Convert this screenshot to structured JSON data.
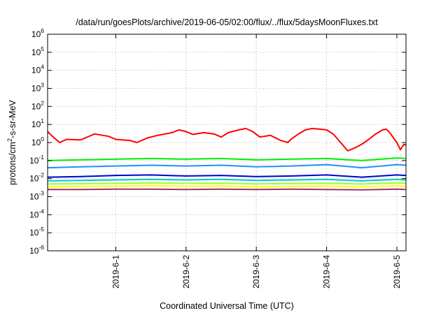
{
  "chart_data": {
    "type": "line",
    "title": "/data/run/goesPlots/archive/2019-06-05/02:00/flux/../flux/5daysMoonFluxes.txt",
    "xlabel": "Coordinated Universal Time (UTC)",
    "ylabel": {
      "base": "protons/cm",
      "sup": "2",
      "rest": "-s-sr-MeV"
    },
    "y_scale": "log",
    "ylim_exponents": [
      -6,
      6
    ],
    "y_ticks": [
      {
        "base": "10",
        "exp": "-6",
        "value": 1e-06
      },
      {
        "base": "10",
        "exp": "-5",
        "value": 1e-05
      },
      {
        "base": "10",
        "exp": "-4",
        "value": 0.0001
      },
      {
        "base": "10",
        "exp": "-3",
        "value": 0.001
      },
      {
        "base": "10",
        "exp": "-2",
        "value": 0.01
      },
      {
        "base": "10",
        "exp": "-1",
        "value": 0.1
      },
      {
        "base": "10",
        "exp": "0",
        "value": 1
      },
      {
        "base": "10",
        "exp": "1",
        "value": 10
      },
      {
        "base": "10",
        "exp": "2",
        "value": 100
      },
      {
        "base": "10",
        "exp": "3",
        "value": 1000
      },
      {
        "base": "10",
        "exp": "4",
        "value": 10000
      },
      {
        "base": "10",
        "exp": "5",
        "value": 100000
      },
      {
        "base": "10",
        "exp": "6",
        "value": 1000000
      }
    ],
    "x_ticks": [
      "2019-6-1",
      "2019-6-2",
      "2019-6-3",
      "2019-6-4",
      "2019-6-5"
    ],
    "x_tick_days": [
      1,
      2,
      3,
      4,
      5
    ],
    "xlim_days": [
      0.03,
      5.13
    ],
    "grid": true,
    "legend": "none",
    "series": [
      {
        "color": "#ff0000",
        "values": [
          [
            0.03,
            4.0
          ],
          [
            0.1,
            2.2
          ],
          [
            0.2,
            1.0
          ],
          [
            0.3,
            1.5
          ],
          [
            0.5,
            1.4
          ],
          [
            0.7,
            3.0
          ],
          [
            0.9,
            2.2
          ],
          [
            1.0,
            1.5
          ],
          [
            1.2,
            1.3
          ],
          [
            1.3,
            1.0
          ],
          [
            1.45,
            1.8
          ],
          [
            1.6,
            2.5
          ],
          [
            1.8,
            3.5
          ],
          [
            1.9,
            5.0
          ],
          [
            2.0,
            4.0
          ],
          [
            2.1,
            2.8
          ],
          [
            2.25,
            3.5
          ],
          [
            2.4,
            3.0
          ],
          [
            2.5,
            2.0
          ],
          [
            2.6,
            3.5
          ],
          [
            2.75,
            5.0
          ],
          [
            2.85,
            6.0
          ],
          [
            2.95,
            4.0
          ],
          [
            3.05,
            2.0
          ],
          [
            3.2,
            2.5
          ],
          [
            3.35,
            1.3
          ],
          [
            3.45,
            1.0
          ],
          [
            3.5,
            1.6
          ],
          [
            3.6,
            3.0
          ],
          [
            3.7,
            5.0
          ],
          [
            3.8,
            6.0
          ],
          [
            3.9,
            5.5
          ],
          [
            4.0,
            5.0
          ],
          [
            4.1,
            2.8
          ],
          [
            4.2,
            1.0
          ],
          [
            4.3,
            0.35
          ],
          [
            4.4,
            0.5
          ],
          [
            4.5,
            0.8
          ],
          [
            4.6,
            1.5
          ],
          [
            4.7,
            3.0
          ],
          [
            4.8,
            5.0
          ],
          [
            4.85,
            5.5
          ],
          [
            4.9,
            3.5
          ],
          [
            5.0,
            1.0
          ],
          [
            5.05,
            0.4
          ],
          [
            5.1,
            0.8
          ],
          [
            5.13,
            0.7
          ]
        ]
      },
      {
        "color": "#00ee00",
        "values": [
          [
            0.03,
            0.1
          ],
          [
            0.5,
            0.11
          ],
          [
            1.0,
            0.12
          ],
          [
            1.5,
            0.13
          ],
          [
            2.0,
            0.12
          ],
          [
            2.5,
            0.13
          ],
          [
            3.0,
            0.11
          ],
          [
            3.5,
            0.12
          ],
          [
            4.0,
            0.13
          ],
          [
            4.5,
            0.1
          ],
          [
            5.0,
            0.14
          ],
          [
            5.13,
            0.13
          ]
        ]
      },
      {
        "color": "#1e90ff",
        "values": [
          [
            0.03,
            0.04
          ],
          [
            0.5,
            0.045
          ],
          [
            1.0,
            0.05
          ],
          [
            1.5,
            0.055
          ],
          [
            2.0,
            0.05
          ],
          [
            2.5,
            0.055
          ],
          [
            3.0,
            0.045
          ],
          [
            3.5,
            0.05
          ],
          [
            4.0,
            0.06
          ],
          [
            4.5,
            0.04
          ],
          [
            5.0,
            0.06
          ],
          [
            5.13,
            0.055
          ]
        ]
      },
      {
        "color": "#0000cc",
        "values": [
          [
            0.03,
            0.012
          ],
          [
            0.5,
            0.013
          ],
          [
            1.0,
            0.015
          ],
          [
            1.5,
            0.016
          ],
          [
            2.0,
            0.014
          ],
          [
            2.5,
            0.015
          ],
          [
            3.0,
            0.013
          ],
          [
            3.5,
            0.014
          ],
          [
            4.0,
            0.016
          ],
          [
            4.5,
            0.012
          ],
          [
            5.0,
            0.016
          ],
          [
            5.13,
            0.015
          ]
        ]
      },
      {
        "color": "#00cccc",
        "values": [
          [
            0.03,
            0.0075
          ],
          [
            0.5,
            0.008
          ],
          [
            1.0,
            0.0085
          ],
          [
            1.5,
            0.009
          ],
          [
            2.0,
            0.0085
          ],
          [
            2.5,
            0.009
          ],
          [
            3.0,
            0.008
          ],
          [
            3.5,
            0.0085
          ],
          [
            4.0,
            0.009
          ],
          [
            4.5,
            0.0075
          ],
          [
            5.0,
            0.009
          ],
          [
            5.13,
            0.0085
          ]
        ]
      },
      {
        "color": "#99ff33",
        "values": [
          [
            0.03,
            0.005
          ],
          [
            0.5,
            0.0052
          ],
          [
            1.0,
            0.0055
          ],
          [
            1.5,
            0.0058
          ],
          [
            2.0,
            0.0055
          ],
          [
            2.5,
            0.0056
          ],
          [
            3.0,
            0.005
          ],
          [
            3.5,
            0.0054
          ],
          [
            4.0,
            0.0056
          ],
          [
            4.5,
            0.005
          ],
          [
            5.0,
            0.0058
          ],
          [
            5.13,
            0.0055
          ]
        ]
      },
      {
        "color": "#ffff00",
        "values": [
          [
            0.03,
            0.0035
          ],
          [
            0.5,
            0.0037
          ],
          [
            1.0,
            0.0038
          ],
          [
            1.5,
            0.004
          ],
          [
            2.0,
            0.0038
          ],
          [
            2.5,
            0.0039
          ],
          [
            3.0,
            0.0035
          ],
          [
            3.5,
            0.0037
          ],
          [
            4.0,
            0.0039
          ],
          [
            4.5,
            0.0035
          ],
          [
            5.0,
            0.004
          ],
          [
            5.13,
            0.0038
          ]
        ]
      },
      {
        "color": "#993366",
        "values": [
          [
            0.03,
            0.0025
          ],
          [
            0.5,
            0.0025
          ],
          [
            1.0,
            0.0026
          ],
          [
            1.5,
            0.0026
          ],
          [
            2.0,
            0.0025
          ],
          [
            2.5,
            0.0026
          ],
          [
            3.0,
            0.0025
          ],
          [
            3.5,
            0.0026
          ],
          [
            4.0,
            0.0025
          ],
          [
            4.5,
            0.0024
          ],
          [
            5.0,
            0.0026
          ],
          [
            5.13,
            0.0025
          ]
        ]
      }
    ]
  }
}
